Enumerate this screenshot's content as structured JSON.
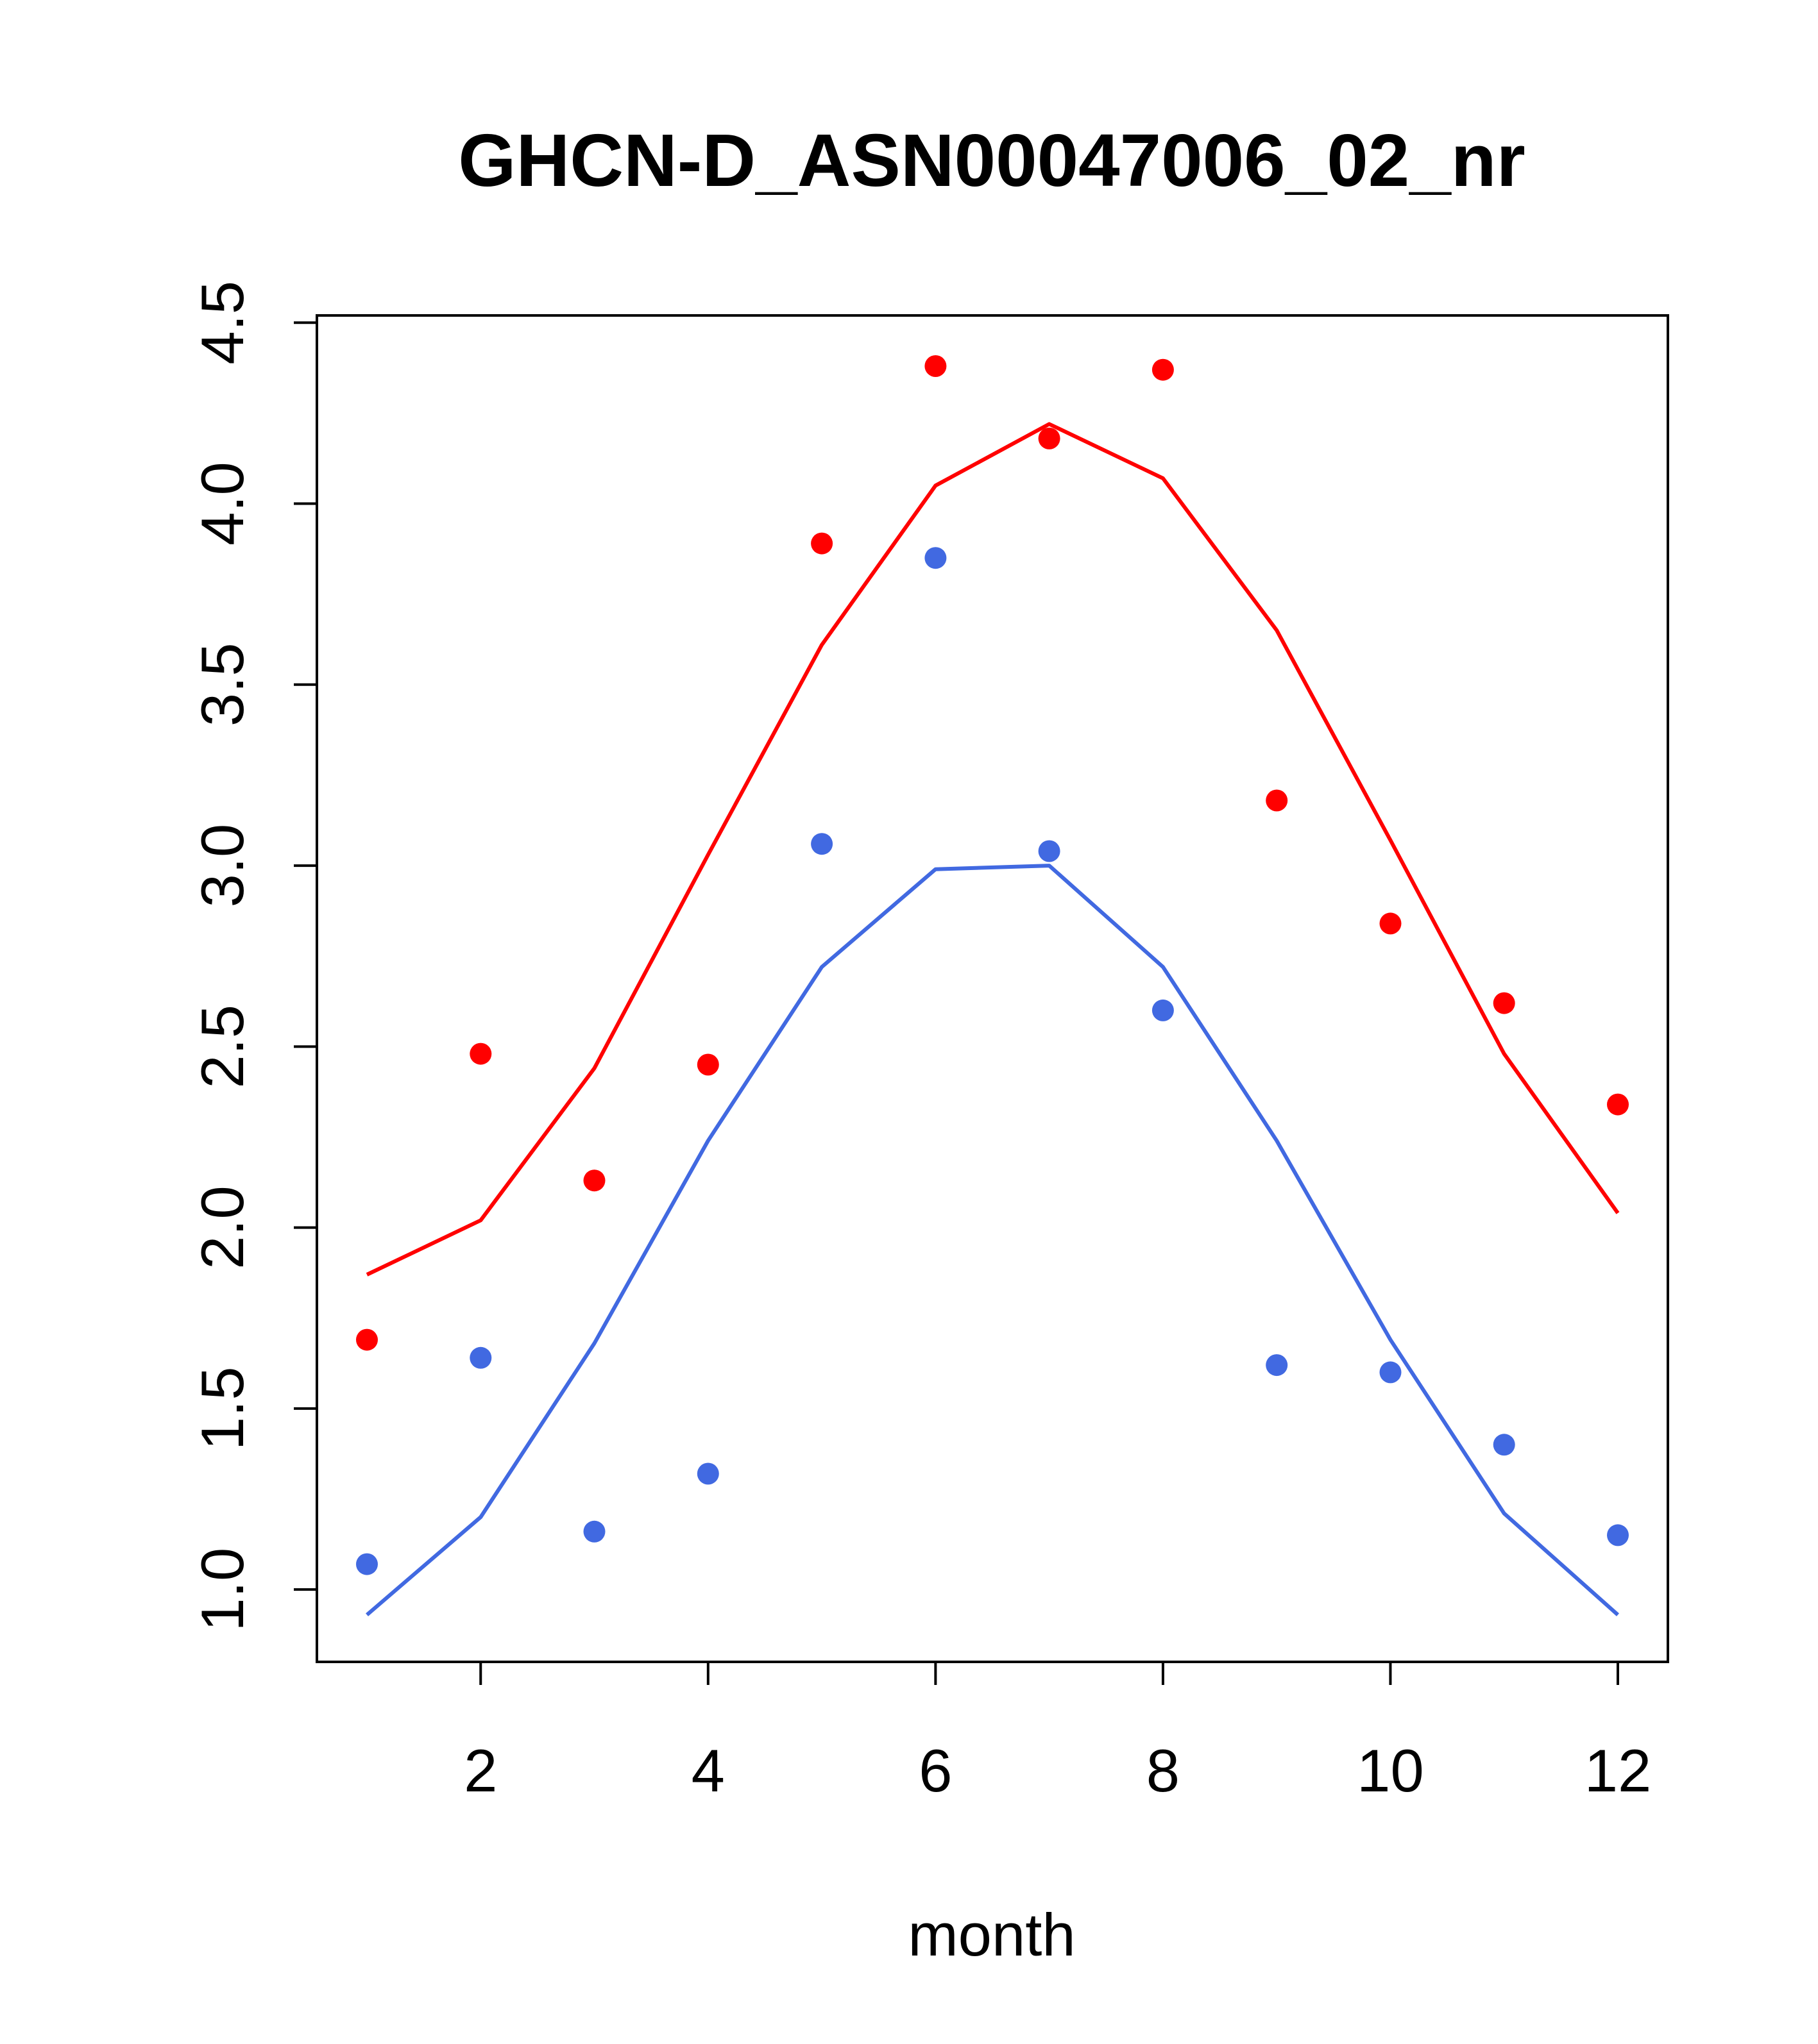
{
  "chart_data": {
    "type": "line",
    "title": "GHCN-D_ASN00047006_02_nr",
    "xlabel": "month",
    "ylabel": "",
    "xlim": [
      0.56,
      12.44
    ],
    "ylim": [
      0.8,
      4.52
    ],
    "x_ticks": [
      2,
      4,
      6,
      8,
      10,
      12
    ],
    "x_tick_labels": [
      "2",
      "4",
      "6",
      "8",
      "10",
      "12"
    ],
    "y_ticks": [
      1.0,
      1.5,
      2.0,
      2.5,
      3.0,
      3.5,
      4.0,
      4.5
    ],
    "y_tick_labels": [
      "1.0",
      "1.5",
      "2.0",
      "2.5",
      "3.0",
      "3.5",
      "4.0",
      "4.5"
    ],
    "grid": false,
    "x": [
      1,
      2,
      3,
      4,
      5,
      6,
      7,
      8,
      9,
      10,
      11,
      12
    ],
    "series": [
      {
        "name": "red-fit",
        "kind": "line",
        "color": "#ff0000",
        "values": [
          1.87,
          2.02,
          2.44,
          3.03,
          3.61,
          4.05,
          4.22,
          4.07,
          3.65,
          3.07,
          2.48,
          2.04
        ]
      },
      {
        "name": "red-observed",
        "kind": "points",
        "color": "#ff0000",
        "values": [
          1.69,
          2.48,
          2.13,
          2.45,
          3.89,
          4.38,
          4.18,
          4.37,
          3.18,
          2.84,
          2.62,
          2.34
        ]
      },
      {
        "name": "blue-fit",
        "kind": "line",
        "color": "#4169e1",
        "values": [
          0.93,
          1.2,
          1.68,
          2.24,
          2.72,
          2.99,
          3.0,
          2.72,
          2.24,
          1.69,
          1.21,
          0.93
        ]
      },
      {
        "name": "blue-observed",
        "kind": "points",
        "color": "#4169e1",
        "values": [
          1.07,
          1.64,
          1.16,
          1.32,
          3.06,
          3.85,
          3.04,
          2.6,
          1.62,
          1.6,
          1.4,
          1.15
        ]
      }
    ]
  }
}
